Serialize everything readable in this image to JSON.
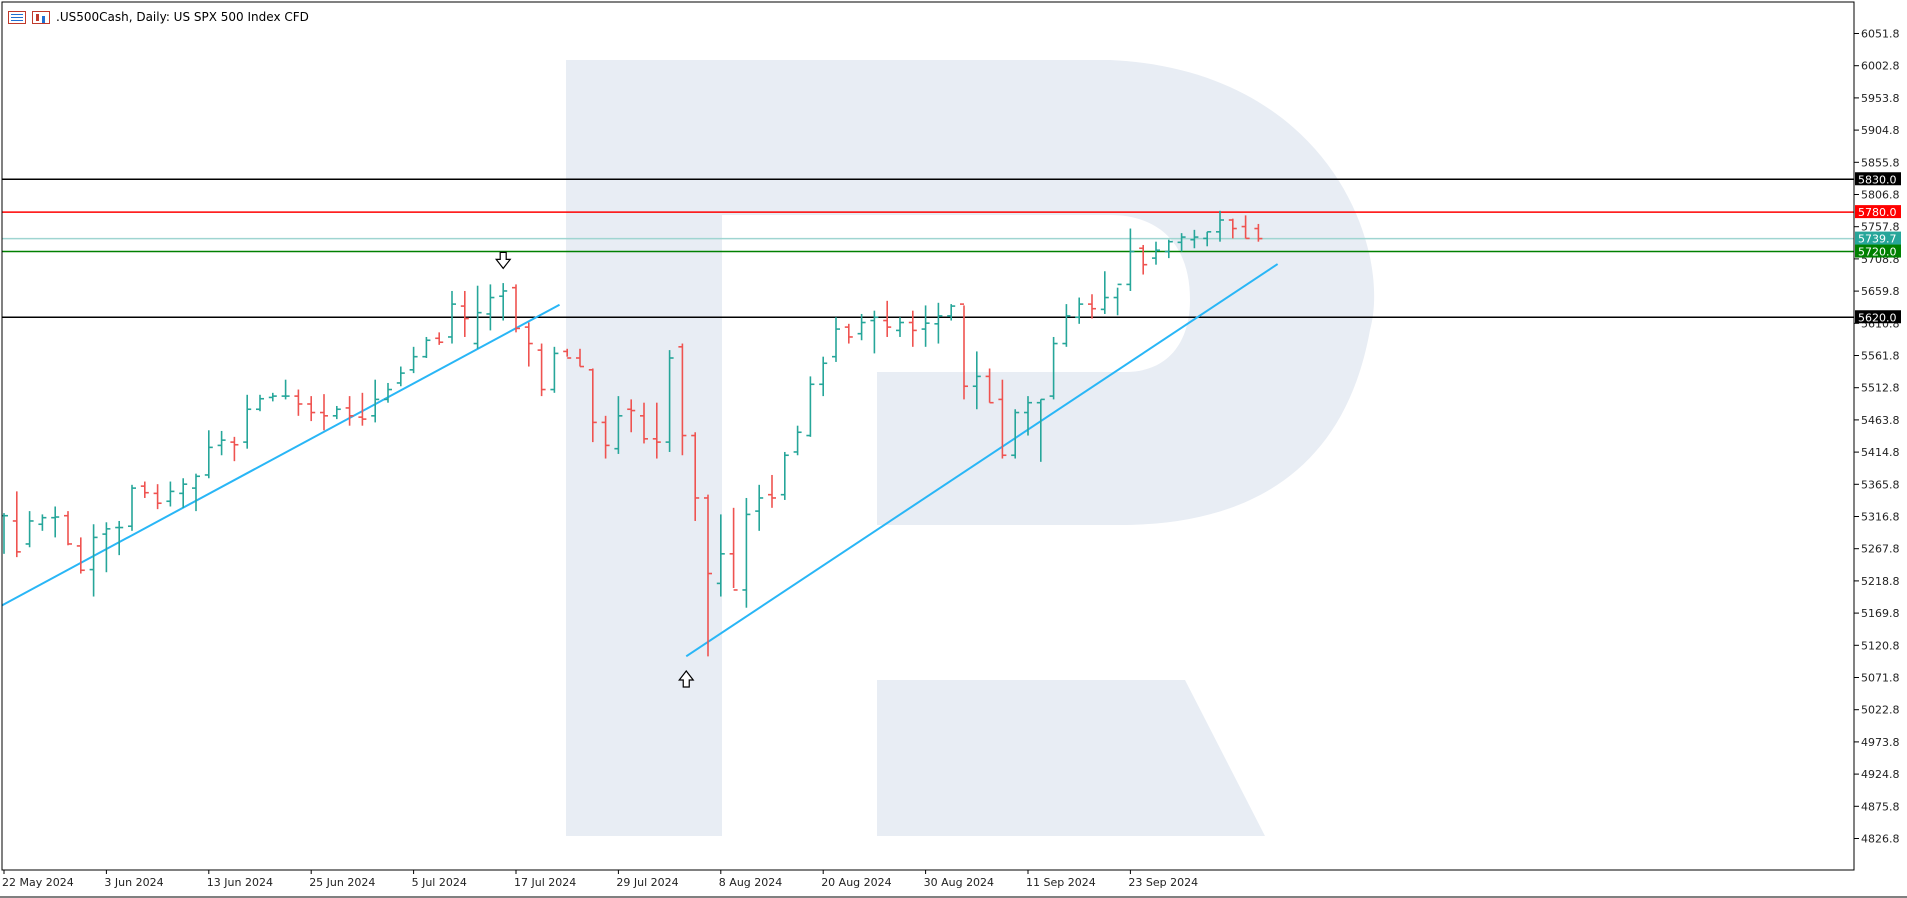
{
  "header": {
    "title": ".US500Cash, Daily:  US SPX 500 Index CFD",
    "icons": [
      "list-icon",
      "bar-chart-icon"
    ]
  },
  "colors": {
    "bull": "#26a69a",
    "bear": "#ef5350",
    "trendline": "#29b6f6",
    "resistance": "#000000",
    "red_level": "#ff0000",
    "green_level": "#008000",
    "current_price": "#26a69a",
    "watermark": "#e8edf4",
    "axis_text": "#222222"
  },
  "chart_data": {
    "type": "ohlc",
    "symbol": ".US500Cash",
    "timeframe": "Daily",
    "description": "US SPX 500 Index CFD",
    "ylim": [
      4790,
      6090
    ],
    "y_ticks": [
      "6051.8",
      "6002.8",
      "5953.8",
      "5904.8",
      "5855.8",
      "5806.8",
      "5757.8",
      "5708.8",
      "5659.8",
      "5610.8",
      "5561.8",
      "5512.8",
      "5463.8",
      "5414.8",
      "5365.8",
      "5316.8",
      "5267.8",
      "5218.8",
      "5169.8",
      "5120.8",
      "5071.8",
      "5022.8",
      "4973.8",
      "4924.8",
      "4875.8",
      "4826.8"
    ],
    "x_labels": [
      {
        "label": "22 May 2024",
        "bar": 0
      },
      {
        "label": "3 Jun 2024",
        "bar": 8
      },
      {
        "label": "13 Jun 2024",
        "bar": 16
      },
      {
        "label": "25 Jun 2024",
        "bar": 24
      },
      {
        "label": "5 Jul 2024",
        "bar": 32
      },
      {
        "label": "17 Jul 2024",
        "bar": 40
      },
      {
        "label": "29 Jul 2024",
        "bar": 48
      },
      {
        "label": "8 Aug 2024",
        "bar": 56
      },
      {
        "label": "20 Aug 2024",
        "bar": 64
      },
      {
        "label": "30 Aug 2024",
        "bar": 72
      },
      {
        "label": "11 Sep 2024",
        "bar": 80
      },
      {
        "label": "23 Sep 2024",
        "bar": 88
      }
    ],
    "horizontal_levels": [
      {
        "value": 5830.0,
        "label": "5830.0",
        "color": "#000000",
        "label_bg": "#000000"
      },
      {
        "value": 5780.0,
        "label": "5780.0",
        "color": "#ff0000",
        "label_bg": "#ff0000"
      },
      {
        "value": 5739.7,
        "label": "5739.7",
        "color": "#9fd5d1",
        "label_bg": "#26a69a"
      },
      {
        "value": 5720.0,
        "label": "5720.0",
        "color": "#008000",
        "label_bg": "#008000"
      },
      {
        "value": 5620.0,
        "label": "5620.0",
        "color": "#000000",
        "label_bg": "#000000"
      }
    ],
    "trendlines": [
      {
        "from": {
          "bar": -0.5,
          "value": 5178
        },
        "to": {
          "bar": 43.4,
          "value": 5639
        }
      },
      {
        "from": {
          "bar": 53.3,
          "value": 5104
        },
        "to": {
          "bar": 99.5,
          "value": 5701
        }
      }
    ],
    "arrows": [
      {
        "direction": "down",
        "bar": 39,
        "value": 5705
      },
      {
        "direction": "up",
        "bar": 53.3,
        "value": 5071
      }
    ],
    "bars": [
      {
        "o": 5318,
        "h": 5322,
        "l": 5260,
        "c": 5318
      },
      {
        "o": 5310,
        "h": 5355,
        "l": 5255,
        "c": 5263
      },
      {
        "o": 5275,
        "h": 5325,
        "l": 5270,
        "c": 5310
      },
      {
        "o": 5305,
        "h": 5320,
        "l": 5295,
        "c": 5315
      },
      {
        "o": 5315,
        "h": 5332,
        "l": 5285,
        "c": 5316
      },
      {
        "o": 5318,
        "h": 5325,
        "l": 5273,
        "c": 5275
      },
      {
        "o": 5272,
        "h": 5285,
        "l": 5230,
        "c": 5235
      },
      {
        "o": 5236,
        "h": 5305,
        "l": 5195,
        "c": 5285
      },
      {
        "o": 5290,
        "h": 5308,
        "l": 5232,
        "c": 5298
      },
      {
        "o": 5300,
        "h": 5310,
        "l": 5258,
        "c": 5300
      },
      {
        "o": 5302,
        "h": 5365,
        "l": 5295,
        "c": 5360
      },
      {
        "o": 5363,
        "h": 5370,
        "l": 5345,
        "c": 5353
      },
      {
        "o": 5352,
        "h": 5366,
        "l": 5328,
        "c": 5337
      },
      {
        "o": 5340,
        "h": 5370,
        "l": 5332,
        "c": 5355
      },
      {
        "o": 5352,
        "h": 5375,
        "l": 5330,
        "c": 5366
      },
      {
        "o": 5360,
        "h": 5382,
        "l": 5325,
        "c": 5378
      },
      {
        "o": 5380,
        "h": 5448,
        "l": 5375,
        "c": 5422
      },
      {
        "o": 5425,
        "h": 5447,
        "l": 5410,
        "c": 5433
      },
      {
        "o": 5430,
        "h": 5438,
        "l": 5401,
        "c": 5426
      },
      {
        "o": 5430,
        "h": 5502,
        "l": 5420,
        "c": 5480
      },
      {
        "o": 5480,
        "h": 5502,
        "l": 5477,
        "c": 5496
      },
      {
        "o": 5498,
        "h": 5505,
        "l": 5492,
        "c": 5500
      },
      {
        "o": 5500,
        "h": 5525,
        "l": 5495,
        "c": 5500
      },
      {
        "o": 5500,
        "h": 5510,
        "l": 5470,
        "c": 5488
      },
      {
        "o": 5488,
        "h": 5500,
        "l": 5462,
        "c": 5475
      },
      {
        "o": 5475,
        "h": 5503,
        "l": 5448,
        "c": 5470
      },
      {
        "o": 5470,
        "h": 5485,
        "l": 5465,
        "c": 5480
      },
      {
        "o": 5482,
        "h": 5500,
        "l": 5455,
        "c": 5470
      },
      {
        "o": 5468,
        "h": 5505,
        "l": 5455,
        "c": 5465
      },
      {
        "o": 5470,
        "h": 5525,
        "l": 5460,
        "c": 5495
      },
      {
        "o": 5495,
        "h": 5520,
        "l": 5490,
        "c": 5510
      },
      {
        "o": 5520,
        "h": 5545,
        "l": 5515,
        "c": 5535
      },
      {
        "o": 5540,
        "h": 5575,
        "l": 5535,
        "c": 5560
      },
      {
        "o": 5560,
        "h": 5590,
        "l": 5558,
        "c": 5585
      },
      {
        "o": 5588,
        "h": 5597,
        "l": 5578,
        "c": 5582
      },
      {
        "o": 5590,
        "h": 5660,
        "l": 5580,
        "c": 5640
      },
      {
        "o": 5637,
        "h": 5660,
        "l": 5590,
        "c": 5618
      },
      {
        "o": 5580,
        "h": 5668,
        "l": 5572,
        "c": 5627
      },
      {
        "o": 5625,
        "h": 5670,
        "l": 5600,
        "c": 5650
      },
      {
        "o": 5652,
        "h": 5672,
        "l": 5615,
        "c": 5660
      },
      {
        "o": 5665,
        "h": 5670,
        "l": 5597,
        "c": 5603
      },
      {
        "o": 5605,
        "h": 5612,
        "l": 5545,
        "c": 5580
      },
      {
        "o": 5570,
        "h": 5580,
        "l": 5500,
        "c": 5510
      },
      {
        "o": 5510,
        "h": 5575,
        "l": 5505,
        "c": 5565
      },
      {
        "o": 5568,
        "h": 5572,
        "l": 5560,
        "c": 5558
      },
      {
        "o": 5558,
        "h": 5572,
        "l": 5545,
        "c": 5545
      },
      {
        "o": 5540,
        "h": 5542,
        "l": 5430,
        "c": 5460
      },
      {
        "o": 5460,
        "h": 5470,
        "l": 5405,
        "c": 5425
      },
      {
        "o": 5420,
        "h": 5500,
        "l": 5412,
        "c": 5470
      },
      {
        "o": 5480,
        "h": 5495,
        "l": 5445,
        "c": 5478
      },
      {
        "o": 5470,
        "h": 5490,
        "l": 5428,
        "c": 5435
      },
      {
        "o": 5435,
        "h": 5490,
        "l": 5405,
        "c": 5430
      },
      {
        "o": 5430,
        "h": 5570,
        "l": 5415,
        "c": 5558
      },
      {
        "o": 5575,
        "h": 5580,
        "l": 5410,
        "c": 5440
      },
      {
        "o": 5440,
        "h": 5445,
        "l": 5310,
        "c": 5345
      },
      {
        "o": 5345,
        "h": 5350,
        "l": 5104,
        "c": 5230
      },
      {
        "o": 5215,
        "h": 5320,
        "l": 5195,
        "c": 5260
      },
      {
        "o": 5260,
        "h": 5330,
        "l": 5208,
        "c": 5205
      },
      {
        "o": 5205,
        "h": 5345,
        "l": 5178,
        "c": 5320
      },
      {
        "o": 5325,
        "h": 5365,
        "l": 5295,
        "c": 5345
      },
      {
        "o": 5350,
        "h": 5380,
        "l": 5330,
        "c": 5345
      },
      {
        "o": 5350,
        "h": 5415,
        "l": 5342,
        "c": 5410
      },
      {
        "o": 5415,
        "h": 5455,
        "l": 5410,
        "c": 5445
      },
      {
        "o": 5440,
        "h": 5530,
        "l": 5438,
        "c": 5518
      },
      {
        "o": 5518,
        "h": 5560,
        "l": 5500,
        "c": 5550
      },
      {
        "o": 5560,
        "h": 5620,
        "l": 5552,
        "c": 5602
      },
      {
        "o": 5605,
        "h": 5610,
        "l": 5580,
        "c": 5590
      },
      {
        "o": 5595,
        "h": 5625,
        "l": 5585,
        "c": 5612
      },
      {
        "o": 5615,
        "h": 5630,
        "l": 5565,
        "c": 5620
      },
      {
        "o": 5615,
        "h": 5645,
        "l": 5590,
        "c": 5605
      },
      {
        "o": 5600,
        "h": 5620,
        "l": 5590,
        "c": 5612
      },
      {
        "o": 5612,
        "h": 5630,
        "l": 5575,
        "c": 5600
      },
      {
        "o": 5602,
        "h": 5638,
        "l": 5575,
        "c": 5611
      },
      {
        "o": 5610,
        "h": 5642,
        "l": 5580,
        "c": 5622
      },
      {
        "o": 5622,
        "h": 5640,
        "l": 5615,
        "c": 5637
      },
      {
        "o": 5640,
        "h": 5638,
        "l": 5495,
        "c": 5515
      },
      {
        "o": 5515,
        "h": 5568,
        "l": 5480,
        "c": 5530
      },
      {
        "o": 5530,
        "h": 5542,
        "l": 5490,
        "c": 5490
      },
      {
        "o": 5495,
        "h": 5525,
        "l": 5405,
        "c": 5410
      },
      {
        "o": 5410,
        "h": 5480,
        "l": 5405,
        "c": 5475
      },
      {
        "o": 5475,
        "h": 5500,
        "l": 5440,
        "c": 5490
      },
      {
        "o": 5490,
        "h": 5495,
        "l": 5400,
        "c": 5495
      },
      {
        "o": 5500,
        "h": 5590,
        "l": 5495,
        "c": 5580
      },
      {
        "o": 5580,
        "h": 5640,
        "l": 5575,
        "c": 5622
      },
      {
        "o": 5620,
        "h": 5650,
        "l": 5610,
        "c": 5640
      },
      {
        "o": 5640,
        "h": 5655,
        "l": 5618,
        "c": 5633
      },
      {
        "o": 5632,
        "h": 5690,
        "l": 5625,
        "c": 5650
      },
      {
        "o": 5650,
        "h": 5665,
        "l": 5623,
        "c": 5670
      },
      {
        "o": 5670,
        "h": 5755,
        "l": 5660,
        "c": 5720
      },
      {
        "o": 5725,
        "h": 5730,
        "l": 5685,
        "c": 5700
      },
      {
        "o": 5710,
        "h": 5735,
        "l": 5700,
        "c": 5722
      },
      {
        "o": 5720,
        "h": 5738,
        "l": 5710,
        "c": 5735
      },
      {
        "o": 5734,
        "h": 5748,
        "l": 5720,
        "c": 5742
      },
      {
        "o": 5738,
        "h": 5753,
        "l": 5725,
        "c": 5742
      },
      {
        "o": 5740,
        "h": 5750,
        "l": 5728,
        "c": 5750
      },
      {
        "o": 5750,
        "h": 5782,
        "l": 5735,
        "c": 5768
      },
      {
        "o": 5768,
        "h": 5770,
        "l": 5740,
        "c": 5755
      },
      {
        "o": 5758,
        "h": 5775,
        "l": 5740,
        "c": 5740
      },
      {
        "o": 5755,
        "h": 5762,
        "l": 5735,
        "c": 5739.7
      }
    ]
  }
}
